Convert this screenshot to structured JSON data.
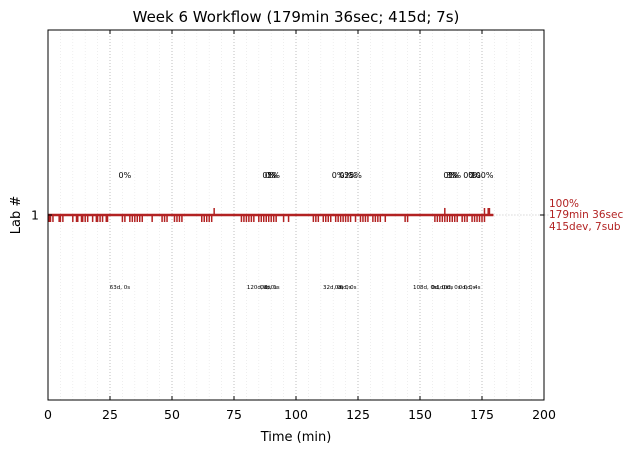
{
  "chart_data": {
    "type": "line",
    "title": "Week 6 Workflow (179min 36sec; 415d; 7s)",
    "xlabel": "Time (min)",
    "ylabel": "Lab #",
    "xlim": [
      0,
      200
    ],
    "xticks": [
      0,
      25,
      50,
      75,
      100,
      125,
      150,
      175,
      200
    ],
    "yticks": [
      1
    ],
    "grid": "vertical dotted",
    "series": [
      {
        "color": "#b22222",
        "baseline_y": 1,
        "x_end": 179.6,
        "ticks_x": [
          0.5,
          1,
          2,
          4.5,
          5,
          6,
          10,
          11.5,
          12,
          13.5,
          14,
          15,
          16,
          18,
          19.5,
          20,
          21,
          22,
          23.5,
          24,
          30,
          31,
          33,
          34,
          35,
          36,
          37,
          38,
          42,
          46,
          47,
          48,
          51,
          52,
          53,
          54,
          62,
          63,
          64,
          65,
          66,
          78,
          79,
          80,
          81,
          82,
          83,
          85,
          86,
          87,
          88,
          89,
          90,
          91,
          92,
          95,
          97,
          107,
          108,
          109,
          111,
          112,
          113,
          114,
          116,
          117,
          118,
          119,
          120,
          121,
          122,
          124,
          126,
          127,
          128,
          129,
          131,
          132,
          133,
          134,
          136,
          144,
          145,
          156,
          157,
          158,
          159,
          160,
          161,
          162,
          163,
          164,
          165,
          167,
          168,
          169,
          171,
          172,
          173,
          174,
          175,
          176
        ],
        "ups_x": [
          67,
          160,
          176,
          177.5,
          178
        ]
      }
    ],
    "annotations": {
      "percent_labels": [
        {
          "x": 31,
          "text": "0%"
        },
        {
          "x": 89,
          "text": "0%"
        },
        {
          "x": 90,
          "text": "0%"
        },
        {
          "x": 91,
          "text": "1%"
        },
        {
          "x": 117,
          "text": "0%"
        },
        {
          "x": 120,
          "text": "0%"
        },
        {
          "x": 122,
          "text": "2%"
        },
        {
          "x": 124,
          "text": "5%"
        },
        {
          "x": 162,
          "text": "0%"
        },
        {
          "x": 163,
          "text": "3%"
        },
        {
          "x": 164,
          "text": "1%"
        },
        {
          "x": 170,
          "text": "0%"
        },
        {
          "x": 172,
          "text": "0%"
        },
        {
          "x": 175,
          "text": "100%"
        }
      ],
      "detail_labels": [
        {
          "x": 29,
          "text": "63d, 0s"
        },
        {
          "x": 85,
          "text": "120d, 0s"
        },
        {
          "x": 89,
          "text": "0d, 0s"
        },
        {
          "x": 90,
          "text": "0d, 1s"
        },
        {
          "x": 115,
          "text": "32d, 0s"
        },
        {
          "x": 119,
          "text": "0d, 0s"
        },
        {
          "x": 121,
          "text": "0d, 0s"
        },
        {
          "x": 152,
          "text": "108d, 0s"
        },
        {
          "x": 158,
          "text": "0d, 0s"
        },
        {
          "x": 160,
          "text": "1d, 0s"
        },
        {
          "x": 163,
          "text": "0d, 0s"
        },
        {
          "x": 169,
          "text": "0d, 0s"
        },
        {
          "x": 171,
          "text": "0d, 4s"
        }
      ]
    },
    "right_labels": [
      "100%",
      "179min 36sec",
      "415dev, 7sub"
    ]
  }
}
